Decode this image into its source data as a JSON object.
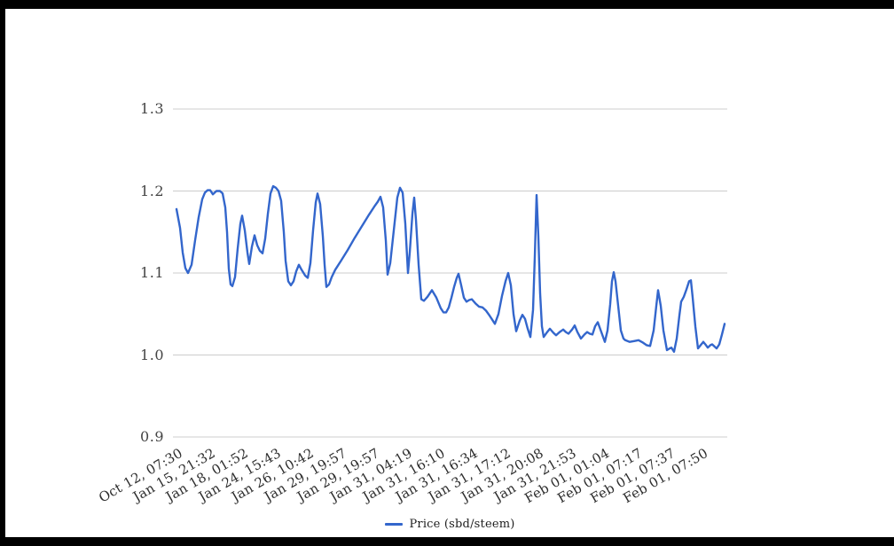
{
  "colors": {
    "series": "#3366cc",
    "grid": "#cccccc",
    "frame": "#000000",
    "background": "#ffffff"
  },
  "chart_data": {
    "type": "line",
    "title": "",
    "legend": {
      "position": "bottom",
      "entries": [
        "Price (sbd/steem)"
      ]
    },
    "x_axis": {
      "label": "",
      "tick_labels": [
        "Oct 12, 07:30",
        "Jan 15, 21:32",
        "Jan 18, 01:52",
        "Jan 24, 15:43",
        "Jan 26, 10:42",
        "Jan 29, 19:57",
        "Jan 29, 19:57",
        "Jan 31, 04:19",
        "Jan 31, 16:10",
        "Jan 31, 16:34",
        "Jan 31, 17:12",
        "Jan 31, 20:08",
        "Jan 31, 21:53",
        "Feb 01, 01:04",
        "Feb 01, 07:17",
        "Feb 01, 07:37",
        "Feb 01, 07:50"
      ]
    },
    "y_axis": {
      "label": "",
      "tick_labels": [
        "1.3",
        "1.2",
        "1.1",
        "1.0",
        "0.9"
      ],
      "min": 0.9,
      "max": 1.3,
      "grid": true
    },
    "series": [
      {
        "name": "Price (sbd/steem)",
        "color": "#3366cc",
        "points": [
          [
            199,
            1.178
          ],
          [
            203,
            1.155
          ],
          [
            206,
            1.125
          ],
          [
            209,
            1.106
          ],
          [
            212,
            1.1
          ],
          [
            216,
            1.11
          ],
          [
            220,
            1.14
          ],
          [
            224,
            1.168
          ],
          [
            228,
            1.19
          ],
          [
            231,
            1.198
          ],
          [
            234,
            1.201
          ],
          [
            237,
            1.201
          ],
          [
            240,
            1.196
          ],
          [
            244,
            1.2
          ],
          [
            248,
            1.2
          ],
          [
            251,
            1.197
          ],
          [
            254,
            1.18
          ],
          [
            256,
            1.15
          ],
          [
            258,
            1.105
          ],
          [
            260,
            1.086
          ],
          [
            262,
            1.084
          ],
          [
            265,
            1.095
          ],
          [
            268,
            1.13
          ],
          [
            271,
            1.16
          ],
          [
            273,
            1.17
          ],
          [
            276,
            1.152
          ],
          [
            279,
            1.125
          ],
          [
            281,
            1.111
          ],
          [
            284,
            1.132
          ],
          [
            287,
            1.146
          ],
          [
            290,
            1.134
          ],
          [
            293,
            1.127
          ],
          [
            296,
            1.124
          ],
          [
            299,
            1.142
          ],
          [
            302,
            1.172
          ],
          [
            305,
            1.197
          ],
          [
            308,
            1.206
          ],
          [
            311,
            1.204
          ],
          [
            314,
            1.2
          ],
          [
            317,
            1.188
          ],
          [
            320,
            1.15
          ],
          [
            322,
            1.115
          ],
          [
            325,
            1.09
          ],
          [
            328,
            1.085
          ],
          [
            331,
            1.09
          ],
          [
            334,
            1.102
          ],
          [
            337,
            1.11
          ],
          [
            340,
            1.104
          ],
          [
            344,
            1.097
          ],
          [
            347,
            1.094
          ],
          [
            350,
            1.112
          ],
          [
            353,
            1.152
          ],
          [
            356,
            1.186
          ],
          [
            358,
            1.197
          ],
          [
            361,
            1.184
          ],
          [
            364,
            1.145
          ],
          [
            366,
            1.11
          ],
          [
            368,
            1.083
          ],
          [
            371,
            1.086
          ],
          [
            374,
            1.095
          ],
          [
            378,
            1.104
          ],
          [
            384,
            1.114
          ],
          [
            392,
            1.128
          ],
          [
            400,
            1.143
          ],
          [
            408,
            1.157
          ],
          [
            416,
            1.171
          ],
          [
            422,
            1.181
          ],
          [
            426,
            1.187
          ],
          [
            429,
            1.193
          ],
          [
            432,
            1.18
          ],
          [
            435,
            1.14
          ],
          [
            437,
            1.098
          ],
          [
            440,
            1.112
          ],
          [
            444,
            1.152
          ],
          [
            448,
            1.192
          ],
          [
            451,
            1.204
          ],
          [
            454,
            1.198
          ],
          [
            457,
            1.16
          ],
          [
            460,
            1.1
          ],
          [
            462,
            1.125
          ],
          [
            465,
            1.172
          ],
          [
            467,
            1.192
          ],
          [
            469,
            1.165
          ],
          [
            472,
            1.11
          ],
          [
            475,
            1.068
          ],
          [
            478,
            1.066
          ],
          [
            482,
            1.071
          ],
          [
            487,
            1.079
          ],
          [
            492,
            1.07
          ],
          [
            497,
            1.057
          ],
          [
            500,
            1.052
          ],
          [
            503,
            1.052
          ],
          [
            506,
            1.058
          ],
          [
            509,
            1.07
          ],
          [
            512,
            1.083
          ],
          [
            515,
            1.094
          ],
          [
            517,
            1.099
          ],
          [
            520,
            1.085
          ],
          [
            523,
            1.07
          ],
          [
            526,
            1.065
          ],
          [
            529,
            1.067
          ],
          [
            532,
            1.068
          ],
          [
            536,
            1.063
          ],
          [
            540,
            1.059
          ],
          [
            544,
            1.058
          ],
          [
            548,
            1.054
          ],
          [
            552,
            1.048
          ],
          [
            555,
            1.043
          ],
          [
            558,
            1.038
          ],
          [
            562,
            1.05
          ],
          [
            566,
            1.072
          ],
          [
            570,
            1.09
          ],
          [
            573,
            1.1
          ],
          [
            576,
            1.085
          ],
          [
            579,
            1.05
          ],
          [
            582,
            1.029
          ],
          [
            586,
            1.042
          ],
          [
            589,
            1.049
          ],
          [
            592,
            1.044
          ],
          [
            595,
            1.032
          ],
          [
            598,
            1.022
          ],
          [
            601,
            1.055
          ],
          [
            603,
            1.12
          ],
          [
            605,
            1.195
          ],
          [
            607,
            1.145
          ],
          [
            609,
            1.075
          ],
          [
            611,
            1.035
          ],
          [
            613,
            1.022
          ],
          [
            617,
            1.028
          ],
          [
            620,
            1.032
          ],
          [
            624,
            1.027
          ],
          [
            627,
            1.024
          ],
          [
            631,
            1.028
          ],
          [
            635,
            1.031
          ],
          [
            638,
            1.028
          ],
          [
            641,
            1.026
          ],
          [
            645,
            1.031
          ],
          [
            648,
            1.036
          ],
          [
            651,
            1.028
          ],
          [
            655,
            1.02
          ],
          [
            659,
            1.025
          ],
          [
            662,
            1.028
          ],
          [
            665,
            1.026
          ],
          [
            668,
            1.025
          ],
          [
            671,
            1.035
          ],
          [
            674,
            1.04
          ],
          [
            678,
            1.028
          ],
          [
            682,
            1.016
          ],
          [
            685,
            1.03
          ],
          [
            688,
            1.062
          ],
          [
            690,
            1.09
          ],
          [
            692,
            1.101
          ],
          [
            694,
            1.09
          ],
          [
            697,
            1.06
          ],
          [
            700,
            1.03
          ],
          [
            703,
            1.02
          ],
          [
            705,
            1.018
          ],
          [
            710,
            1.016
          ],
          [
            715,
            1.017
          ],
          [
            720,
            1.018
          ],
          [
            725,
            1.015
          ],
          [
            729,
            1.012
          ],
          [
            733,
            1.011
          ],
          [
            737,
            1.03
          ],
          [
            740,
            1.06
          ],
          [
            742,
            1.079
          ],
          [
            745,
            1.06
          ],
          [
            748,
            1.03
          ],
          [
            752,
            1.006
          ],
          [
            755,
            1.008
          ],
          [
            757,
            1.009
          ],
          [
            760,
            1.004
          ],
          [
            763,
            1.02
          ],
          [
            766,
            1.048
          ],
          [
            768,
            1.065
          ],
          [
            771,
            1.071
          ],
          [
            774,
            1.08
          ],
          [
            777,
            1.09
          ],
          [
            779,
            1.091
          ],
          [
            781,
            1.07
          ],
          [
            784,
            1.035
          ],
          [
            787,
            1.008
          ],
          [
            790,
            1.012
          ],
          [
            793,
            1.016
          ],
          [
            796,
            1.012
          ],
          [
            798,
            1.009
          ],
          [
            801,
            1.012
          ],
          [
            803,
            1.013
          ],
          [
            806,
            1.01
          ],
          [
            808,
            1.008
          ],
          [
            811,
            1.013
          ],
          [
            814,
            1.025
          ],
          [
            817,
            1.038
          ]
        ]
      }
    ]
  }
}
